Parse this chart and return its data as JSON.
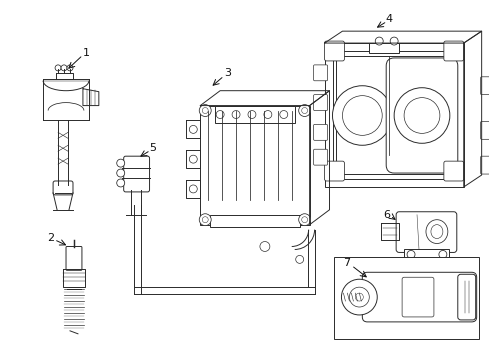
{
  "bg_color": "#ffffff",
  "line_color": "#2a2a2a",
  "label_color": "#111111",
  "fig_width": 4.9,
  "fig_height": 3.6,
  "dpi": 100
}
